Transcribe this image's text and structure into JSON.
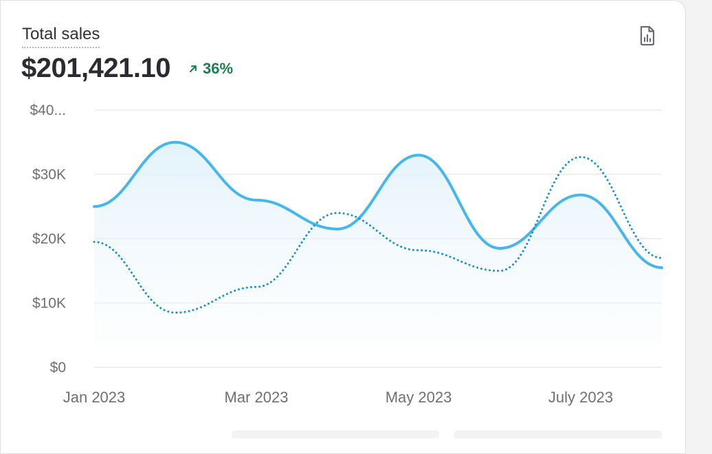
{
  "card": {
    "title": "Total sales",
    "total": "$201,421.10",
    "delta": "36%",
    "delta_color": "#1a7f4f",
    "export_icon": "file-chart-icon"
  },
  "chart_data": {
    "type": "line",
    "x": [
      "2023-01-01",
      "2023-02-01",
      "2023-03-01",
      "2023-04-01",
      "2023-05-01",
      "2023-06-01",
      "2023-07-01",
      "2023-08-01"
    ],
    "x_tick_labels": [
      "Jan 2023",
      "Mar 2023",
      "May 2023",
      "July 2023"
    ],
    "y_tick_labels": [
      "$0",
      "$10K",
      "$20K",
      "$30K",
      "$40..."
    ],
    "ylim": [
      0,
      40000
    ],
    "grid": true,
    "series": [
      {
        "style": "solid",
        "area_fill": true,
        "color": "#47b6ea",
        "values": [
          25000,
          35000,
          26000,
          21500,
          33000,
          18500,
          26800,
          15500
        ]
      },
      {
        "style": "dotted",
        "area_fill": false,
        "color": "#1892c9",
        "values": [
          19500,
          8500,
          12500,
          24000,
          18200,
          15000,
          32700,
          17000
        ]
      }
    ]
  }
}
